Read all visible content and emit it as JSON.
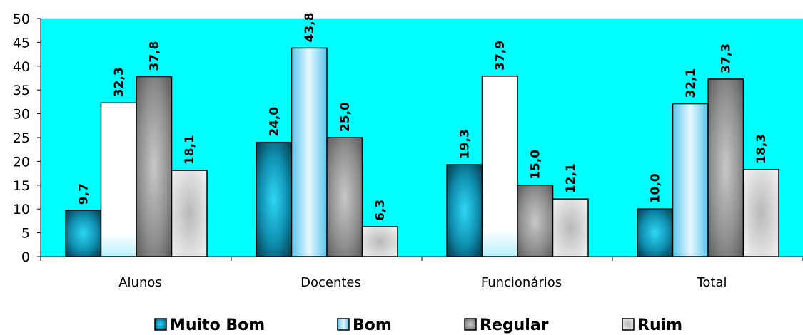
{
  "chart_data": {
    "type": "bar",
    "categories": [
      "Alunos",
      "Docentes",
      "Funcionários",
      "Total"
    ],
    "series": [
      {
        "name": "Muito Bom",
        "values": [
          9.7,
          24.0,
          19.3,
          10.0
        ],
        "labels": [
          "9,7",
          "24,0",
          "19,3",
          "10,0"
        ],
        "color": "#1aa3c4"
      },
      {
        "name": "Bom",
        "values": [
          32.3,
          43.8,
          37.9,
          32.1
        ],
        "labels": [
          "32,3",
          "43,8",
          "37,9",
          "32,1"
        ],
        "color": "#7fd8f5"
      },
      {
        "name": "Regular",
        "values": [
          37.8,
          25.0,
          15.0,
          37.3
        ],
        "labels": [
          "37,8",
          "25,0",
          "15,0",
          "37,3"
        ],
        "color": "#9a9a9a"
      },
      {
        "name": "Ruim",
        "values": [
          18.1,
          6.3,
          12.1,
          18.3
        ],
        "labels": [
          "18,1",
          "6,3",
          "12,1",
          "18,3"
        ],
        "color": "#cfcfcf"
      }
    ],
    "ylim": [
      0,
      50
    ],
    "yticks": [
      0,
      5,
      10,
      15,
      20,
      25,
      30,
      35,
      40,
      45,
      50
    ],
    "plot_background": "#00ffff",
    "grid": false,
    "legend_position": "bottom"
  },
  "variant_notes": {
    "Bom": [
      "light-blue",
      "white",
      "light-blue",
      "white"
    ]
  }
}
